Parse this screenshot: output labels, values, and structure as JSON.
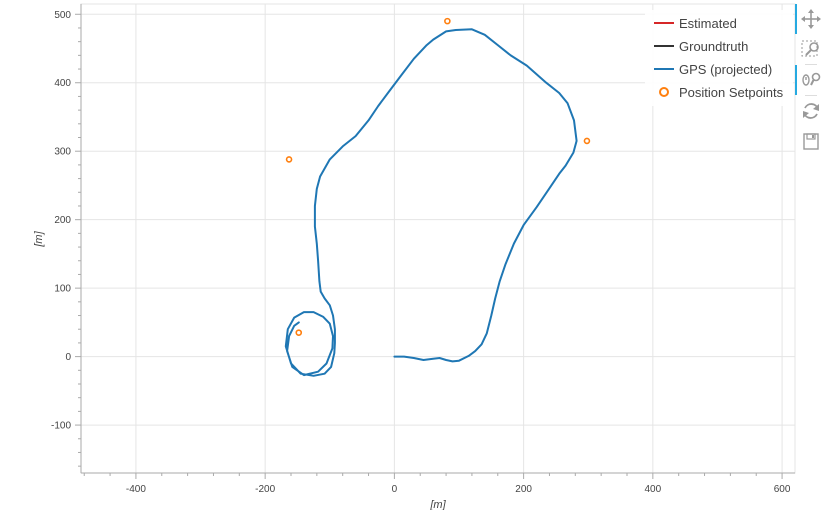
{
  "chart_data": {
    "type": "line",
    "title": "",
    "xlabel": "[m]",
    "ylabel": "[m]",
    "xlim": [
      -485,
      620
    ],
    "ylim": [
      -170,
      515
    ],
    "x_ticks": [
      -400,
      -200,
      0,
      200,
      400,
      600
    ],
    "y_ticks": [
      -100,
      0,
      100,
      200,
      300,
      400,
      500
    ],
    "grid": true,
    "legend": {
      "placement": "top-right",
      "entries": [
        {
          "label": "Estimated",
          "color": "#d62728",
          "glyph": "line"
        },
        {
          "label": "Groundtruth",
          "color": "#333333",
          "glyph": "line"
        },
        {
          "label": "GPS (projected)",
          "color": "#1f77b4",
          "glyph": "line"
        },
        {
          "label": "Position Setpoints",
          "color": "#ff7f0e",
          "glyph": "circle"
        }
      ]
    },
    "series": [
      {
        "name": "GPS (projected)",
        "color": "#1f77b4",
        "points": [
          [
            0,
            0
          ],
          [
            15,
            0
          ],
          [
            30,
            -2
          ],
          [
            45,
            -5
          ],
          [
            60,
            -3
          ],
          [
            70,
            -2
          ],
          [
            80,
            -5
          ],
          [
            90,
            -7
          ],
          [
            100,
            -6
          ],
          [
            115,
            1
          ],
          [
            125,
            8
          ],
          [
            135,
            18
          ],
          [
            143,
            34
          ],
          [
            150,
            60
          ],
          [
            156,
            85
          ],
          [
            163,
            110
          ],
          [
            172,
            135
          ],
          [
            185,
            165
          ],
          [
            200,
            192
          ],
          [
            220,
            218
          ],
          [
            240,
            246
          ],
          [
            255,
            267
          ],
          [
            265,
            279
          ],
          [
            277,
            298
          ],
          [
            282,
            315
          ],
          [
            278,
            345
          ],
          [
            268,
            370
          ],
          [
            255,
            385
          ],
          [
            235,
            400
          ],
          [
            205,
            425
          ],
          [
            180,
            440
          ],
          [
            160,
            455
          ],
          [
            140,
            470
          ],
          [
            120,
            478
          ],
          [
            95,
            477
          ],
          [
            80,
            475
          ],
          [
            60,
            463
          ],
          [
            50,
            455
          ],
          [
            30,
            435
          ],
          [
            10,
            410
          ],
          [
            -10,
            385
          ],
          [
            -25,
            366
          ],
          [
            -40,
            345
          ],
          [
            -60,
            322
          ],
          [
            -80,
            307
          ],
          [
            -100,
            288
          ],
          [
            -115,
            263
          ],
          [
            -120,
            245
          ],
          [
            -123,
            220
          ],
          [
            -123,
            190
          ],
          [
            -120,
            165
          ],
          [
            -118,
            140
          ],
          [
            -116,
            110
          ],
          [
            -114,
            95
          ],
          [
            -108,
            85
          ],
          [
            -100,
            75
          ],
          [
            -95,
            60
          ],
          [
            -92,
            40
          ],
          [
            -92,
            20
          ],
          [
            -93,
            5
          ],
          [
            -98,
            -15
          ],
          [
            -108,
            -25
          ],
          [
            -125,
            -28
          ],
          [
            -145,
            -25
          ],
          [
            -160,
            -10
          ],
          [
            -168,
            15
          ],
          [
            -165,
            40
          ],
          [
            -155,
            57
          ],
          [
            -140,
            65
          ],
          [
            -125,
            65
          ],
          [
            -110,
            58
          ],
          [
            -100,
            48
          ],
          [
            -95,
            30
          ],
          [
            -96,
            12
          ],
          [
            -105,
            -10
          ],
          [
            -118,
            -22
          ],
          [
            -140,
            -27
          ],
          [
            -158,
            -15
          ],
          [
            -166,
            8
          ],
          [
            -163,
            30
          ],
          [
            -155,
            45
          ],
          [
            -148,
            50
          ]
        ]
      },
      {
        "name": "Position Setpoints",
        "color": "#ff7f0e",
        "type": "scatter",
        "points": [
          [
            82,
            490
          ],
          [
            298,
            315
          ],
          [
            -163,
            288
          ],
          [
            -148,
            35
          ]
        ]
      }
    ]
  },
  "toolbar": [
    {
      "name": "pan-tool",
      "icon": "move-arrows-icon",
      "active": true
    },
    {
      "name": "box-zoom-tool",
      "icon": "box-zoom-icon",
      "active": false
    },
    {
      "name": "wheel-zoom-tool",
      "icon": "wheel-zoom-icon",
      "active": true
    },
    {
      "name": "reset-tool",
      "icon": "reset-icon",
      "active": false
    },
    {
      "name": "save-tool",
      "icon": "save-icon",
      "active": false
    }
  ]
}
